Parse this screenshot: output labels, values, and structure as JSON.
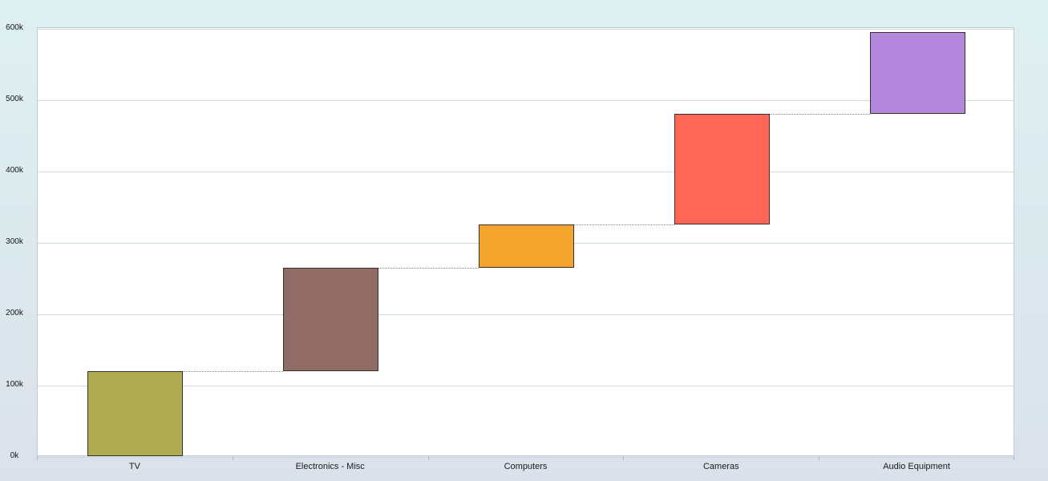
{
  "chart_data": {
    "type": "waterfall",
    "title": "",
    "categories": [
      "TV",
      "Electronics - Misc",
      "Computers",
      "Cameras",
      "Audio Equipment"
    ],
    "values": [
      120000,
      145000,
      60000,
      155000,
      115000
    ],
    "cumulative": [
      120000,
      265000,
      325000,
      480000,
      595000
    ],
    "bar_colors": [
      "#aeab52",
      "#916b66",
      "#f3a52e",
      "#ff6656",
      "#b388dc"
    ],
    "bar_border_color": "#37322a",
    "connector_style": "dotted",
    "connector_color": "#858585",
    "y_axis": {
      "min": 0,
      "max": 600000,
      "tick_interval": 100000,
      "tick_labels": [
        "0k",
        "100k",
        "200k",
        "300k",
        "400k",
        "500k",
        "600k"
      ]
    },
    "x_axis": {
      "tickmark_placement": "between"
    },
    "grid": true,
    "legend": false
  },
  "colors": {
    "background_top": "#def0f2",
    "background_bottom": "#dbe1eb",
    "plot_background": "#ffffff",
    "plot_border": "#bfccd5",
    "gridline": "#cdd9e0",
    "axis_tick": "#a9bac4",
    "label_text": "#141414"
  }
}
